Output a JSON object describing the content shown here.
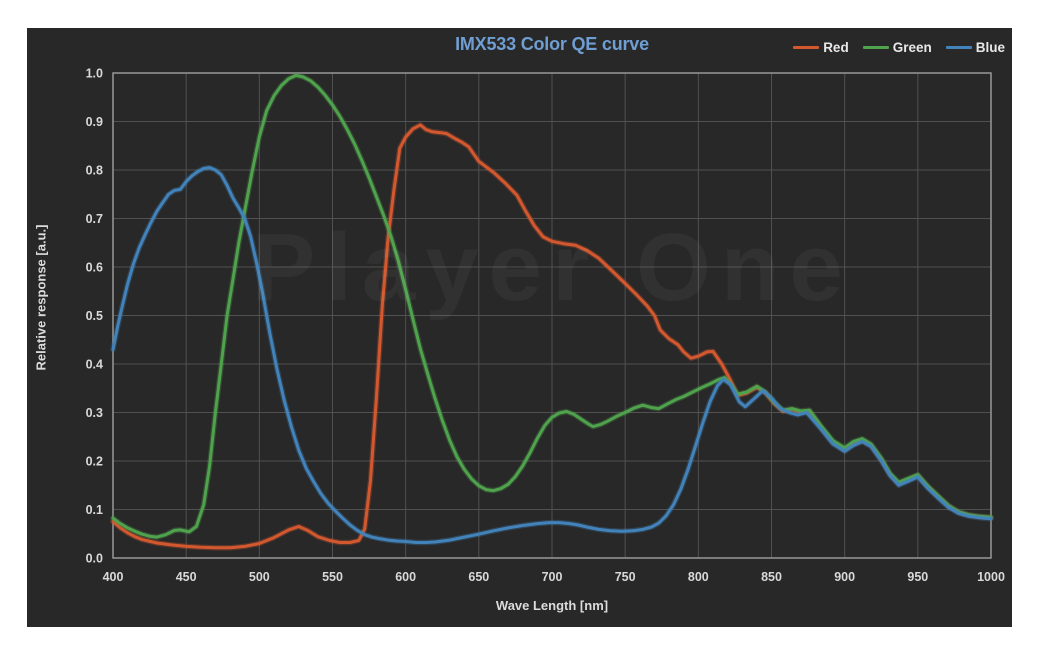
{
  "watermark": "Player One",
  "chart_data": {
    "type": "line",
    "title": "IMX533 Color QE curve",
    "title_color": "#6e9ed2",
    "xlabel": "Wave Length [nm]",
    "ylabel": "Relative response [a.u.]",
    "xlim": [
      400,
      1000
    ],
    "ylim": [
      0.0,
      1.0
    ],
    "grid": true,
    "legend_position": "top-right",
    "xtick_values": [
      400,
      450,
      500,
      550,
      600,
      650,
      700,
      750,
      800,
      850,
      900,
      950,
      1000
    ],
    "xtick_labels": [
      "400",
      "450",
      "500",
      "550",
      "600",
      "650",
      "700",
      "750",
      "800",
      "850",
      "900",
      "950",
      "1000"
    ],
    "ytick_values": [
      0.0,
      0.1,
      0.2,
      0.3,
      0.4,
      0.5,
      0.6,
      0.7,
      0.8,
      0.9,
      1.0
    ],
    "ytick_labels": [
      "0.0",
      "0.1",
      "0.2",
      "0.3",
      "0.4",
      "0.5",
      "0.6",
      "0.7",
      "0.8",
      "0.9",
      "1.0"
    ],
    "series": [
      {
        "name": "Red",
        "color": "#d4582f",
        "points": [
          [
            400,
            0.075
          ],
          [
            405,
            0.062
          ],
          [
            410,
            0.052
          ],
          [
            415,
            0.044
          ],
          [
            420,
            0.038
          ],
          [
            430,
            0.031
          ],
          [
            440,
            0.027
          ],
          [
            450,
            0.024
          ],
          [
            460,
            0.022
          ],
          [
            470,
            0.021
          ],
          [
            480,
            0.021
          ],
          [
            490,
            0.024
          ],
          [
            500,
            0.03
          ],
          [
            510,
            0.042
          ],
          [
            520,
            0.058
          ],
          [
            527,
            0.065
          ],
          [
            533,
            0.057
          ],
          [
            540,
            0.044
          ],
          [
            548,
            0.036
          ],
          [
            555,
            0.032
          ],
          [
            562,
            0.032
          ],
          [
            568,
            0.036
          ],
          [
            572,
            0.06
          ],
          [
            576,
            0.16
          ],
          [
            580,
            0.33
          ],
          [
            584,
            0.52
          ],
          [
            588,
            0.66
          ],
          [
            592,
            0.76
          ],
          [
            596,
            0.845
          ],
          [
            600,
            0.868
          ],
          [
            605,
            0.885
          ],
          [
            610,
            0.893
          ],
          [
            614,
            0.883
          ],
          [
            618,
            0.879
          ],
          [
            624,
            0.877
          ],
          [
            628,
            0.875
          ],
          [
            633,
            0.866
          ],
          [
            638,
            0.858
          ],
          [
            643,
            0.848
          ],
          [
            650,
            0.818
          ],
          [
            660,
            0.795
          ],
          [
            668,
            0.773
          ],
          [
            676,
            0.748
          ],
          [
            682,
            0.715
          ],
          [
            688,
            0.685
          ],
          [
            694,
            0.662
          ],
          [
            700,
            0.653
          ],
          [
            708,
            0.648
          ],
          [
            716,
            0.645
          ],
          [
            724,
            0.634
          ],
          [
            732,
            0.618
          ],
          [
            740,
            0.595
          ],
          [
            750,
            0.566
          ],
          [
            758,
            0.542
          ],
          [
            765,
            0.52
          ],
          [
            770,
            0.5
          ],
          [
            774,
            0.47
          ],
          [
            780,
            0.452
          ],
          [
            786,
            0.44
          ],
          [
            790,
            0.425
          ],
          [
            795,
            0.412
          ],
          [
            800,
            0.416
          ],
          [
            806,
            0.425
          ],
          [
            810,
            0.426
          ],
          [
            816,
            0.4
          ],
          [
            821,
            0.372
          ],
          [
            827,
            0.335
          ],
          [
            833,
            0.34
          ],
          [
            840,
            0.352
          ],
          [
            846,
            0.34
          ],
          [
            852,
            0.318
          ],
          [
            858,
            0.302
          ],
          [
            864,
            0.306
          ],
          [
            870,
            0.3
          ],
          [
            876,
            0.302
          ],
          [
            884,
            0.268
          ],
          [
            892,
            0.238
          ],
          [
            900,
            0.222
          ],
          [
            906,
            0.235
          ],
          [
            912,
            0.242
          ],
          [
            918,
            0.232
          ],
          [
            925,
            0.203
          ],
          [
            931,
            0.172
          ],
          [
            937,
            0.153
          ],
          [
            944,
            0.162
          ],
          [
            950,
            0.17
          ],
          [
            957,
            0.146
          ],
          [
            964,
            0.126
          ],
          [
            971,
            0.107
          ],
          [
            978,
            0.094
          ],
          [
            985,
            0.088
          ],
          [
            992,
            0.085
          ],
          [
            1000,
            0.083
          ]
        ]
      },
      {
        "name": "Green",
        "color": "#4fa34d",
        "points": [
          [
            400,
            0.082
          ],
          [
            405,
            0.071
          ],
          [
            410,
            0.062
          ],
          [
            415,
            0.055
          ],
          [
            420,
            0.049
          ],
          [
            425,
            0.045
          ],
          [
            430,
            0.043
          ],
          [
            436,
            0.048
          ],
          [
            442,
            0.057
          ],
          [
            446,
            0.058
          ],
          [
            452,
            0.054
          ],
          [
            457,
            0.065
          ],
          [
            462,
            0.11
          ],
          [
            466,
            0.19
          ],
          [
            470,
            0.3
          ],
          [
            474,
            0.4
          ],
          [
            478,
            0.5
          ],
          [
            482,
            0.575
          ],
          [
            486,
            0.65
          ],
          [
            490,
            0.715
          ],
          [
            495,
            0.795
          ],
          [
            500,
            0.868
          ],
          [
            505,
            0.922
          ],
          [
            510,
            0.953
          ],
          [
            515,
            0.974
          ],
          [
            520,
            0.988
          ],
          [
            525,
            0.995
          ],
          [
            530,
            0.992
          ],
          [
            535,
            0.984
          ],
          [
            540,
            0.971
          ],
          [
            545,
            0.954
          ],
          [
            550,
            0.934
          ],
          [
            555,
            0.911
          ],
          [
            560,
            0.884
          ],
          [
            565,
            0.854
          ],
          [
            570,
            0.82
          ],
          [
            575,
            0.784
          ],
          [
            580,
            0.745
          ],
          [
            585,
            0.706
          ],
          [
            590,
            0.663
          ],
          [
            595,
            0.612
          ],
          [
            600,
            0.553
          ],
          [
            605,
            0.492
          ],
          [
            610,
            0.432
          ],
          [
            615,
            0.38
          ],
          [
            620,
            0.33
          ],
          [
            625,
            0.284
          ],
          [
            630,
            0.243
          ],
          [
            635,
            0.209
          ],
          [
            640,
            0.183
          ],
          [
            645,
            0.163
          ],
          [
            650,
            0.149
          ],
          [
            655,
            0.141
          ],
          [
            660,
            0.139
          ],
          [
            665,
            0.143
          ],
          [
            670,
            0.152
          ],
          [
            675,
            0.168
          ],
          [
            680,
            0.19
          ],
          [
            685,
            0.217
          ],
          [
            690,
            0.247
          ],
          [
            695,
            0.273
          ],
          [
            700,
            0.29
          ],
          [
            705,
            0.299
          ],
          [
            710,
            0.302
          ],
          [
            715,
            0.296
          ],
          [
            720,
            0.286
          ],
          [
            725,
            0.276
          ],
          [
            728,
            0.271
          ],
          [
            733,
            0.275
          ],
          [
            738,
            0.282
          ],
          [
            744,
            0.292
          ],
          [
            750,
            0.3
          ],
          [
            756,
            0.309
          ],
          [
            762,
            0.315
          ],
          [
            768,
            0.31
          ],
          [
            773,
            0.308
          ],
          [
            779,
            0.318
          ],
          [
            785,
            0.327
          ],
          [
            790,
            0.333
          ],
          [
            796,
            0.342
          ],
          [
            802,
            0.351
          ],
          [
            808,
            0.359
          ],
          [
            814,
            0.368
          ],
          [
            818,
            0.372
          ],
          [
            823,
            0.355
          ],
          [
            827,
            0.338
          ],
          [
            833,
            0.342
          ],
          [
            840,
            0.354
          ],
          [
            846,
            0.342
          ],
          [
            852,
            0.32
          ],
          [
            858,
            0.305
          ],
          [
            864,
            0.308
          ],
          [
            870,
            0.303
          ],
          [
            876,
            0.305
          ],
          [
            884,
            0.272
          ],
          [
            892,
            0.242
          ],
          [
            900,
            0.227
          ],
          [
            906,
            0.24
          ],
          [
            912,
            0.246
          ],
          [
            918,
            0.235
          ],
          [
            925,
            0.206
          ],
          [
            931,
            0.175
          ],
          [
            937,
            0.156
          ],
          [
            944,
            0.165
          ],
          [
            950,
            0.172
          ],
          [
            957,
            0.148
          ],
          [
            964,
            0.128
          ],
          [
            971,
            0.108
          ],
          [
            978,
            0.095
          ],
          [
            985,
            0.089
          ],
          [
            992,
            0.086
          ],
          [
            1000,
            0.084
          ]
        ]
      },
      {
        "name": "Blue",
        "color": "#4183ba",
        "points": [
          [
            400,
            0.43
          ],
          [
            403,
            0.475
          ],
          [
            406,
            0.515
          ],
          [
            410,
            0.565
          ],
          [
            414,
            0.607
          ],
          [
            418,
            0.64
          ],
          [
            422,
            0.667
          ],
          [
            426,
            0.692
          ],
          [
            430,
            0.715
          ],
          [
            434,
            0.733
          ],
          [
            438,
            0.75
          ],
          [
            442,
            0.758
          ],
          [
            446,
            0.76
          ],
          [
            450,
            0.776
          ],
          [
            454,
            0.788
          ],
          [
            458,
            0.797
          ],
          [
            462,
            0.803
          ],
          [
            466,
            0.805
          ],
          [
            470,
            0.8
          ],
          [
            474,
            0.79
          ],
          [
            478,
            0.768
          ],
          [
            482,
            0.742
          ],
          [
            486,
            0.722
          ],
          [
            490,
            0.7
          ],
          [
            494,
            0.663
          ],
          [
            498,
            0.61
          ],
          [
            502,
            0.55
          ],
          [
            507,
            0.466
          ],
          [
            512,
            0.39
          ],
          [
            517,
            0.325
          ],
          [
            522,
            0.27
          ],
          [
            527,
            0.222
          ],
          [
            532,
            0.185
          ],
          [
            537,
            0.158
          ],
          [
            542,
            0.133
          ],
          [
            547,
            0.113
          ],
          [
            552,
            0.097
          ],
          [
            557,
            0.082
          ],
          [
            562,
            0.068
          ],
          [
            567,
            0.057
          ],
          [
            572,
            0.048
          ],
          [
            577,
            0.043
          ],
          [
            582,
            0.04
          ],
          [
            588,
            0.037
          ],
          [
            594,
            0.035
          ],
          [
            600,
            0.034
          ],
          [
            607,
            0.032
          ],
          [
            614,
            0.032
          ],
          [
            620,
            0.033
          ],
          [
            630,
            0.037
          ],
          [
            640,
            0.043
          ],
          [
            650,
            0.049
          ],
          [
            660,
            0.056
          ],
          [
            670,
            0.062
          ],
          [
            680,
            0.067
          ],
          [
            690,
            0.071
          ],
          [
            698,
            0.073
          ],
          [
            705,
            0.073
          ],
          [
            712,
            0.071
          ],
          [
            718,
            0.068
          ],
          [
            725,
            0.063
          ],
          [
            732,
            0.059
          ],
          [
            740,
            0.056
          ],
          [
            748,
            0.055
          ],
          [
            755,
            0.056
          ],
          [
            762,
            0.059
          ],
          [
            768,
            0.064
          ],
          [
            773,
            0.072
          ],
          [
            778,
            0.087
          ],
          [
            783,
            0.11
          ],
          [
            788,
            0.142
          ],
          [
            793,
            0.183
          ],
          [
            798,
            0.23
          ],
          [
            803,
            0.278
          ],
          [
            808,
            0.322
          ],
          [
            813,
            0.355
          ],
          [
            817,
            0.368
          ],
          [
            822,
            0.358
          ],
          [
            828,
            0.322
          ],
          [
            832,
            0.312
          ],
          [
            838,
            0.328
          ],
          [
            844,
            0.345
          ],
          [
            850,
            0.33
          ],
          [
            856,
            0.308
          ],
          [
            862,
            0.3
          ],
          [
            868,
            0.295
          ],
          [
            874,
            0.3
          ],
          [
            884,
            0.265
          ],
          [
            892,
            0.235
          ],
          [
            900,
            0.22
          ],
          [
            906,
            0.232
          ],
          [
            912,
            0.24
          ],
          [
            918,
            0.23
          ],
          [
            925,
            0.2
          ],
          [
            931,
            0.17
          ],
          [
            937,
            0.15
          ],
          [
            944,
            0.159
          ],
          [
            950,
            0.167
          ],
          [
            957,
            0.143
          ],
          [
            964,
            0.123
          ],
          [
            971,
            0.104
          ],
          [
            978,
            0.092
          ],
          [
            985,
            0.086
          ],
          [
            992,
            0.083
          ],
          [
            1000,
            0.081
          ]
        ]
      }
    ]
  }
}
